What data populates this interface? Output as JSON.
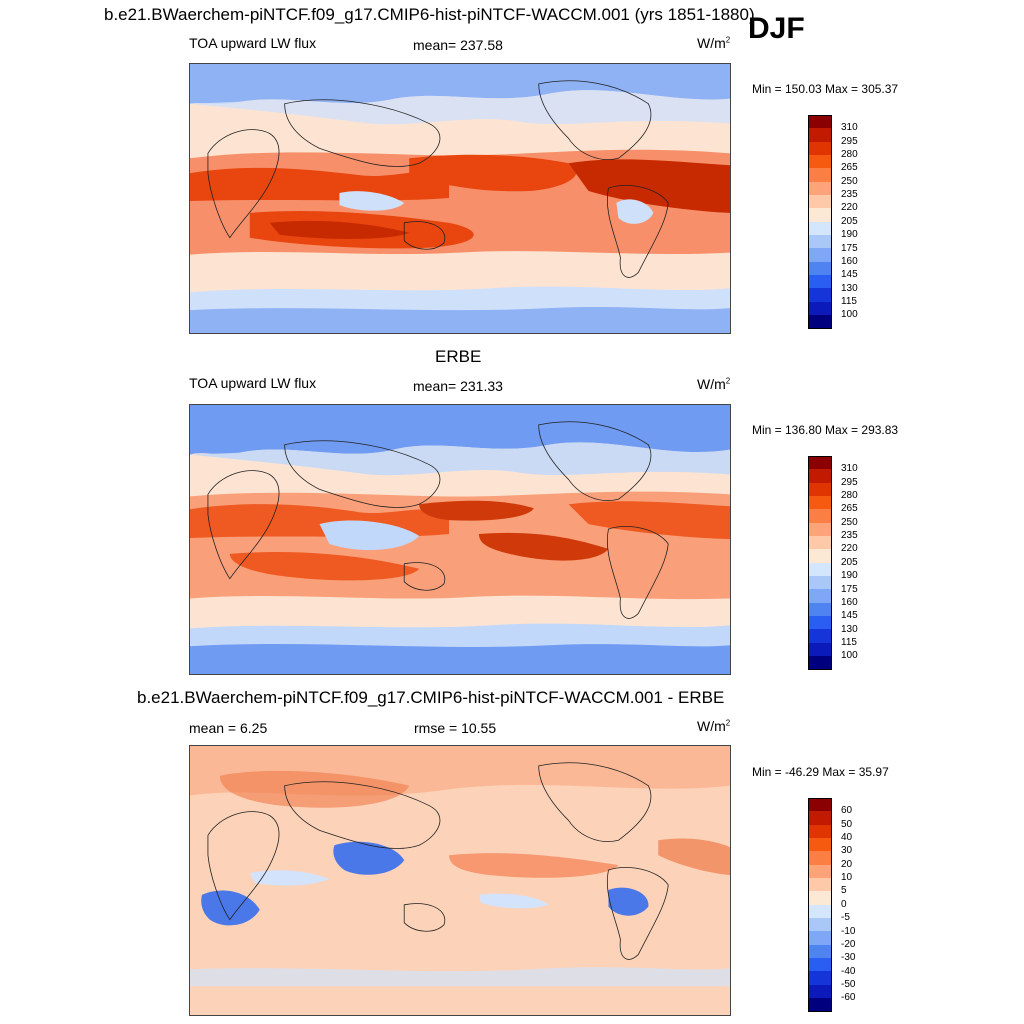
{
  "season": "DJF",
  "panels": [
    {
      "title": "b.e21.BWaerchem-piNTCF.f09_g17.CMIP6-hist-piNTCF-WACCM.001 (yrs 1851-1880)",
      "left_label": "TOA upward LW flux",
      "center_label": "mean= 237.58",
      "units": "W/m",
      "units_sup": "2",
      "minmax": "Min = 150.03 Max = 305.37",
      "colorbar_labels": [
        "310",
        "295",
        "280",
        "265",
        "250",
        "235",
        "220",
        "205",
        "190",
        "175",
        "160",
        "145",
        "130",
        "115",
        "100"
      ],
      "colorbar_colors": [
        "#8b0000",
        "#c01a00",
        "#e03500",
        "#f55a10",
        "#fb7e45",
        "#fca37a",
        "#fdc9a8",
        "#fde8d6",
        "#d4e6fb",
        "#a9c8f8",
        "#7ea8f5",
        "#4f84f0",
        "#2a5ef2",
        "#1535d8",
        "#0b1ab8",
        "#00007f"
      ],
      "map_colors": {
        "bg": "#fde4d2",
        "cold": "#8fb2f5",
        "warm": "#e8460e",
        "hot": "#c72a00",
        "mid": "#f7906a",
        "cool": "#cfe0fb",
        "land": "#222222"
      }
    },
    {
      "title": "ERBE",
      "left_label": "TOA upward LW flux",
      "center_label": "mean= 231.33",
      "units": "W/m",
      "units_sup": "2",
      "minmax": "Min = 136.80 Max = 293.83",
      "colorbar_labels": [
        "310",
        "295",
        "280",
        "265",
        "250",
        "235",
        "220",
        "205",
        "190",
        "175",
        "160",
        "145",
        "130",
        "115",
        "100"
      ],
      "colorbar_colors": [
        "#8b0000",
        "#c01a00",
        "#e03500",
        "#f55a10",
        "#fb7e45",
        "#fca37a",
        "#fdc9a8",
        "#fde8d6",
        "#d4e6fb",
        "#a9c8f8",
        "#7ea8f5",
        "#4f84f0",
        "#2a5ef2",
        "#1535d8",
        "#0b1ab8",
        "#00007f"
      ],
      "map_colors": {
        "bg": "#fde4d2",
        "cold": "#6f9bf2",
        "warm": "#ef5a22",
        "hot": "#d03a0a",
        "mid": "#f9a07a",
        "cool": "#c2d8fa",
        "land": "#222222"
      }
    },
    {
      "title": "b.e21.BWaerchem-piNTCF.f09_g17.CMIP6-hist-piNTCF-WACCM.001 - ERBE",
      "left_label": "mean =   6.25",
      "center_label": "rmse =  10.55",
      "units": "W/m",
      "units_sup": "2",
      "minmax": "Min = -46.29 Max =  35.97",
      "colorbar_labels": [
        "60",
        "50",
        "40",
        "30",
        "20",
        "10",
        "5",
        "0",
        "-5",
        "-10",
        "-20",
        "-30",
        "-40",
        "-50",
        "-60"
      ],
      "colorbar_colors": [
        "#8b0000",
        "#c01a00",
        "#e03500",
        "#f55a10",
        "#fb7e45",
        "#fca37a",
        "#fdc9a8",
        "#fde8d6",
        "#d4e6fb",
        "#a9c8f8",
        "#7ea8f5",
        "#4f84f0",
        "#2a5ef2",
        "#1535d8",
        "#0b1ab8",
        "#00007f"
      ],
      "map_colors": {
        "bg": "#fcd2b8",
        "cold": "#4a78e8",
        "warm": "#f79870",
        "hot": "#f07a48",
        "mid": "#fbb896",
        "cool": "#d2e3fb",
        "land": "#222222"
      }
    }
  ]
}
